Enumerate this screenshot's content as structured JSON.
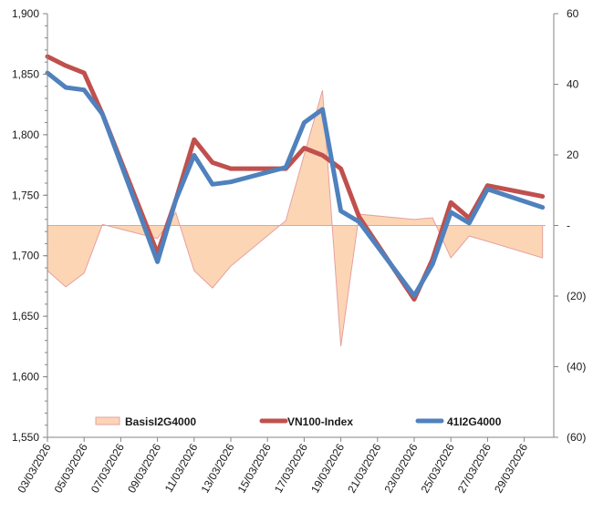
{
  "chart_data": {
    "type": "line",
    "title": "",
    "xlabel": "",
    "ylabel": "",
    "y2label": "",
    "x_axis_type": "date",
    "x_range": [
      "03/03/2026",
      "30/03/2026"
    ],
    "x_tick_labels": [
      "03/03/2026",
      "05/03/2026",
      "07/03/2026",
      "09/03/2026",
      "11/03/2026",
      "13/03/2026",
      "15/03/2026",
      "17/03/2026",
      "19/03/2026",
      "21/03/2026",
      "23/03/2026",
      "25/03/2026",
      "27/03/2026",
      "29/03/2026"
    ],
    "ylim": [
      1550,
      1900
    ],
    "y_ticks": [
      1550,
      1600,
      1650,
      1700,
      1750,
      1800,
      1850,
      1900
    ],
    "y_tick_labels": [
      "1,550",
      "1,600",
      "1,650",
      "1,700",
      "1,750",
      "1,800",
      "1,850",
      "1,900"
    ],
    "y2lim": [
      -60,
      60
    ],
    "y2_ticks": [
      -60,
      -40,
      -20,
      0,
      20,
      40,
      60
    ],
    "y2_tick_labels": [
      "(60)",
      "(40)",
      "(20)",
      "-",
      "20",
      "40",
      "60"
    ],
    "grid": false,
    "legend_position": "bottom-inside",
    "x": [
      "03/03/2026",
      "04/03/2026",
      "05/03/2026",
      "06/03/2026",
      "09/03/2026",
      "10/03/2026",
      "11/03/2026",
      "12/03/2026",
      "13/03/2026",
      "16/03/2026",
      "17/03/2026",
      "18/03/2026",
      "19/03/2026",
      "20/03/2026",
      "23/03/2026",
      "24/03/2026",
      "25/03/2026",
      "26/03/2026",
      "27/03/2026",
      "30/03/2026"
    ],
    "series": [
      {
        "name": "BasisI2G4000",
        "type": "area",
        "axis": "right",
        "color": "#FCD5B5",
        "stroke": "#E6A0A0",
        "values": [
          -12.8,
          -17.4,
          -13.5,
          0.3,
          -3.7,
          3.7,
          -12.8,
          -17.7,
          -11.5,
          1.4,
          20.0,
          38.3,
          -34.2,
          3.2,
          1.7,
          2.2,
          -9.2,
          -3.0,
          -4.5,
          -9.2
        ]
      },
      {
        "name": "VN100-Index",
        "type": "line",
        "axis": "left",
        "color": "#C0504D",
        "values": [
          1864.6,
          1857,
          1851,
          1817,
          1702,
          1746,
          1796,
          1777,
          1772,
          1772,
          1789,
          1783,
          1772,
          1732,
          1664,
          1697,
          1744,
          1731,
          1758,
          1749
        ]
      },
      {
        "name": "41I2G4000",
        "type": "line",
        "axis": "left",
        "color": "#4F81BD",
        "values": [
          1851,
          1839,
          1837,
          1817,
          1695,
          1746,
          1783,
          1759,
          1761,
          1773,
          1810,
          1821,
          1737,
          1728,
          1667,
          1693,
          1736,
          1727,
          1755,
          1740
        ]
      }
    ]
  }
}
